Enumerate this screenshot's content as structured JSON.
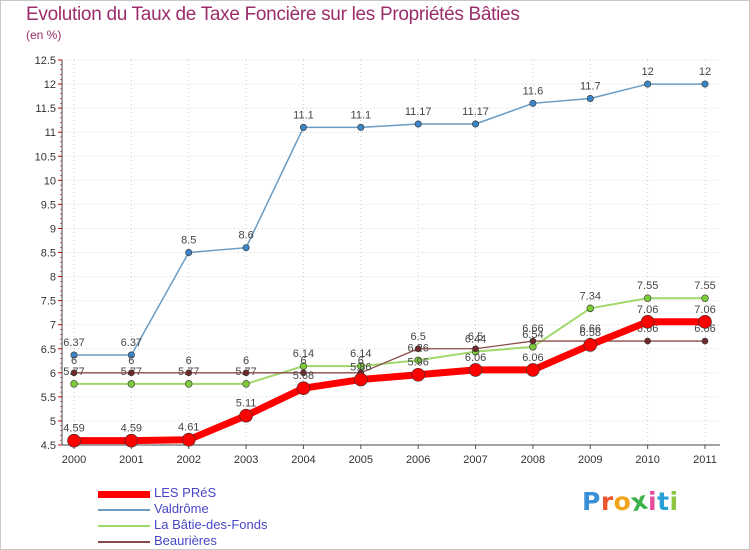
{
  "header": {
    "title": "Evolution du Taux de Taxe Foncière sur les Propriétés Bâties",
    "subtitle": "(en %)"
  },
  "logo": {
    "letters": [
      "P",
      "r",
      "o",
      "x",
      "i",
      "t",
      "i"
    ],
    "colors": [
      "#3a8fd6",
      "#e8552e",
      "#f2a51c",
      "#3db24a",
      "#e84d9c",
      "#2a9fd6",
      "#8cc63f"
    ]
  },
  "chart_data": {
    "type": "line",
    "title": "Evolution du Taux de Taxe Foncière sur les Propriétés Bâties",
    "ylabel": "(en %)",
    "xlabel": "",
    "x": [
      "2000",
      "2001",
      "2002",
      "2003",
      "2004",
      "2005",
      "2006",
      "2007",
      "2008",
      "2009",
      "2010",
      "2011"
    ],
    "ylim": [
      4.5,
      12.5
    ],
    "yticks": [
      "4.5",
      "5",
      "5.5",
      "6",
      "6.5",
      "7",
      "7.5",
      "8",
      "8.5",
      "9",
      "9.5",
      "10",
      "10.5",
      "11",
      "11.5",
      "12",
      "12.5"
    ],
    "legend_position": "bottom-left",
    "series": [
      {
        "name": "Valdrôme",
        "color": "#6a9cc4",
        "marker_color": "#3a86c6",
        "values": [
          6.37,
          6.37,
          8.5,
          8.6,
          11.1,
          11.1,
          11.17,
          11.17,
          11.6,
          11.7,
          12,
          12
        ],
        "labels": [
          "6.37",
          "6.37",
          "8.5",
          "8.6",
          "11.1",
          "11.1",
          "11.17",
          "11.17",
          "11.6",
          "11.7",
          "12",
          "12"
        ]
      },
      {
        "name": "La Bâtie-des-Fonds",
        "color": "#9fd86b",
        "marker_color": "#7ccc3a",
        "values": [
          5.77,
          5.77,
          5.77,
          5.77,
          6.14,
          6.14,
          6.26,
          6.44,
          6.54,
          7.34,
          7.55,
          7.55
        ],
        "labels": [
          "5.77",
          "5.77",
          "5.77",
          "5.77",
          "6.14",
          "6.14",
          "6.26",
          "6.44",
          "6.54",
          "7.34",
          "7.55",
          "7.55"
        ]
      },
      {
        "name": "Beaurières",
        "color": "#8a4a4a",
        "marker_color": "#6e2a2a",
        "values": [
          6,
          6,
          6,
          6,
          6,
          6,
          6.5,
          6.5,
          6.66,
          6.66,
          6.66,
          6.66
        ],
        "labels": [
          "6",
          "6",
          "6",
          "6",
          "6",
          "6",
          "6.5",
          "6.5",
          "6.66",
          "6.66",
          "6.66",
          "6.66"
        ]
      },
      {
        "name": "LES PRéS",
        "color": "#ff0000",
        "marker_color": "#ff0000",
        "values": [
          4.59,
          4.59,
          4.61,
          5.11,
          5.68,
          5.86,
          5.96,
          6.06,
          6.06,
          6.58,
          7.06,
          7.06
        ],
        "labels": [
          "4.59",
          "4.59",
          "4.61",
          "5.11",
          "5.68",
          "5.86",
          "5.96",
          "6.06",
          "6.06",
          "6.58",
          "7.06",
          "7.06"
        ]
      }
    ],
    "legend": [
      "LES PRéS",
      "Valdrôme",
      "La Bâtie-des-Fonds",
      "Beaurières"
    ]
  }
}
